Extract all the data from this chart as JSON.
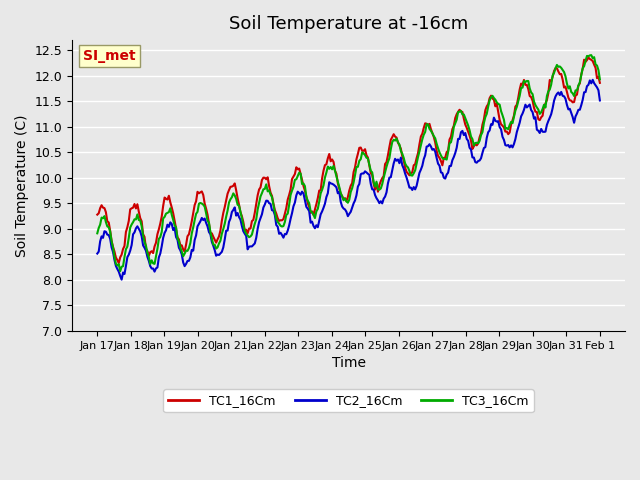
{
  "title": "Soil Temperature at -16cm",
  "xlabel": "Time",
  "ylabel": "Soil Temperature (C)",
  "ylim": [
    7.0,
    12.7
  ],
  "yticks": [
    7.0,
    7.5,
    8.0,
    8.5,
    9.0,
    9.5,
    10.0,
    10.5,
    11.0,
    11.5,
    12.0,
    12.5
  ],
  "bg_color": "#e8e8e8",
  "plot_bg_color": "#e8e8e8",
  "grid_color": "#ffffff",
  "series": {
    "TC1_16Cm": {
      "color": "#cc0000",
      "lw": 1.5
    },
    "TC2_16Cm": {
      "color": "#0000cc",
      "lw": 1.5
    },
    "TC3_16Cm": {
      "color": "#00aa00",
      "lw": 1.5
    }
  },
  "legend_label": "SI_met",
  "legend_box_color": "#ffffcc",
  "legend_text_color": "#cc0000",
  "x_tick_labels": [
    "Jan 17",
    "Jan 18",
    "Jan 19",
    "Jan 20",
    "Jan 21",
    "Jan 22",
    "Jan 23",
    "Jan 24",
    "Jan 25",
    "Jan 26",
    "Jan 27",
    "Jan 28",
    "Jan 29",
    "Jan 30",
    "Jan 31",
    "Feb 1"
  ],
  "n_points": 352
}
